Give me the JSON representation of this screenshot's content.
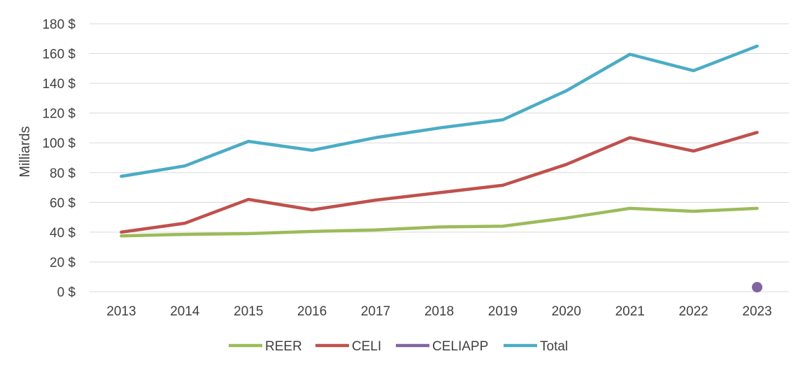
{
  "chart_data": {
    "type": "line",
    "title": "",
    "xlabel": "",
    "ylabel": "Milliards",
    "ylim": [
      0,
      180
    ],
    "ytick_values": [
      0,
      20,
      40,
      60,
      80,
      100,
      120,
      140,
      160,
      180
    ],
    "ytick_labels": [
      "0 $",
      "20 $",
      "40 $",
      "60 $",
      "80 $",
      "100 $",
      "120 $",
      "140 $",
      "160 $",
      "180 $"
    ],
    "categories": [
      "2013",
      "2014",
      "2015",
      "2016",
      "2017",
      "2018",
      "2019",
      "2020",
      "2021",
      "2022",
      "2023"
    ],
    "grid": true,
    "legend_position": "bottom",
    "series": [
      {
        "name": "REER",
        "color": "#9bbb59",
        "values": [
          37.5,
          38.5,
          39,
          40.5,
          41.5,
          43.5,
          44,
          49.5,
          56,
          54,
          56
        ]
      },
      {
        "name": "CELI",
        "color": "#c0504d",
        "values": [
          40,
          46,
          62,
          55,
          61.5,
          66.5,
          71.5,
          85.5,
          103.5,
          94.5,
          107
        ]
      },
      {
        "name": "CELIAPP",
        "color": "#8064a2",
        "values": [
          null,
          null,
          null,
          null,
          null,
          null,
          null,
          null,
          null,
          null,
          3
        ]
      },
      {
        "name": "Total",
        "color": "#4bacc6",
        "values": [
          77.5,
          84.5,
          101,
          95,
          103.5,
          110,
          115.5,
          135,
          159.5,
          148.5,
          165
        ]
      }
    ]
  }
}
